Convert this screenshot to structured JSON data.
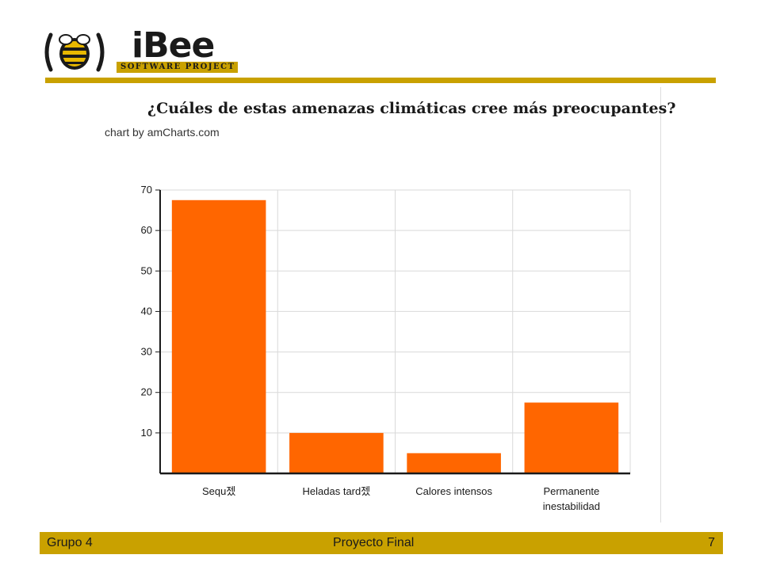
{
  "logo": {
    "brand": "iBee",
    "tagline": "SOFTWARE PROJECT",
    "icon": "bee-icon"
  },
  "colors": {
    "gold": "#c9a100",
    "bar": "#ff6600",
    "grid": "#d9d9d9",
    "axis": "#1a1a1a"
  },
  "chart_data": {
    "type": "bar",
    "title": "¿Cuáles de estas amenazas climáticas cree más preocupantes?",
    "credit": "chart by amCharts.com",
    "categories": [
      "Sequ젰",
      "Heladas tard젰",
      "Calores intensos",
      "Permanente inestabilidad"
    ],
    "category_lines": [
      [
        "Sequ젰"
      ],
      [
        "Heladas tard젰"
      ],
      [
        "Calores intensos"
      ],
      [
        "Permanente",
        "inestabilidad"
      ]
    ],
    "values": [
      67.5,
      10,
      5,
      17.5
    ],
    "ylim": [
      0,
      70
    ],
    "yticks": [
      10,
      20,
      30,
      40,
      50,
      60,
      70
    ],
    "xlabel": "",
    "ylabel": "",
    "grid": true,
    "legend": "none"
  },
  "footer": {
    "left": "Grupo 4",
    "center": "Proyecto Final",
    "right": "7"
  }
}
